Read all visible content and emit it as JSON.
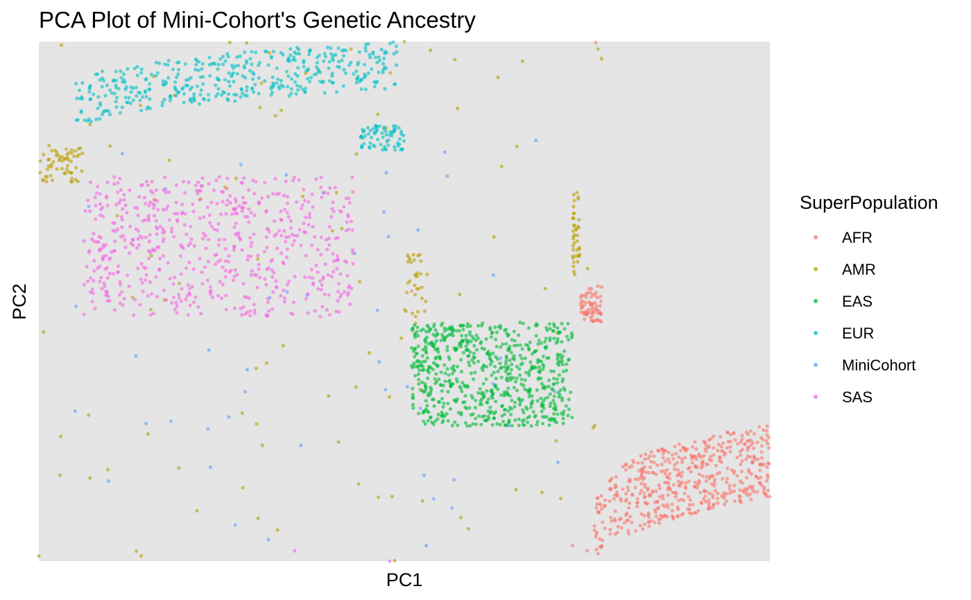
{
  "chart_data": {
    "type": "scatter",
    "title": "PCA Plot of Mini-Cohort's Genetic Ancestry",
    "xlabel": "PC1",
    "ylabel": "PC2",
    "xlim": [
      0,
      1
    ],
    "ylim": [
      0,
      1
    ],
    "axis_ticks": false,
    "grid": false,
    "panel_background": "#e5e5e5",
    "legend": {
      "title": "SuperPopulation",
      "position": "right",
      "entries": [
        "AFR",
        "AMR",
        "EAS",
        "EUR",
        "MiniCohort",
        "SAS"
      ]
    },
    "series": [
      {
        "name": "AFR",
        "color": "#F8766D",
        "clusters": [
          {
            "shape": "band",
            "n": 520,
            "x_range": [
              0.76,
              1.0
            ],
            "y_range": [
              0.0,
              0.26
            ],
            "note": "curved band rising to the right"
          },
          {
            "shape": "thin_line",
            "n": 70,
            "x_range": [
              0.74,
              0.77
            ],
            "y_range": [
              0.46,
              0.53
            ]
          }
        ],
        "points": [
          [
            0.762,
            0.998
          ],
          [
            0.51,
            0.52
          ],
          [
            0.73,
            0.03
          ],
          [
            0.75,
            0.02
          ]
        ]
      },
      {
        "name": "AMR",
        "color": "#B79F00",
        "clusters": [
          {
            "shape": "blob",
            "n": 60,
            "x_range": [
              0.0,
              0.06
            ],
            "y_range": [
              0.73,
              0.8
            ]
          },
          {
            "shape": "thin_line",
            "n": 40,
            "x_range": [
              0.73,
              0.74
            ],
            "y_range": [
              0.55,
              0.71
            ]
          },
          {
            "shape": "thin_line",
            "n": 30,
            "x_range": [
              0.5,
              0.53
            ],
            "y_range": [
              0.47,
              0.59
            ]
          },
          {
            "shape": "scatter",
            "n": 90,
            "x_range": [
              0.0,
              0.77
            ],
            "y_range": [
              0.0,
              1.0
            ]
          }
        ],
        "points": [
          [
            0.03,
            0.24
          ],
          [
            0.07,
            0.16
          ],
          [
            0.0,
            0.01
          ],
          [
            0.14,
            0.01
          ],
          [
            0.5,
            1.0
          ]
        ]
      },
      {
        "name": "EAS",
        "color": "#00BA38",
        "clusters": [
          {
            "shape": "rectangle",
            "n": 700,
            "x_range": [
              0.51,
              0.73
            ],
            "y_range": [
              0.26,
              0.46
            ]
          }
        ],
        "points": []
      },
      {
        "name": "EUR",
        "color": "#00BFC4",
        "clusters": [
          {
            "shape": "band",
            "n": 420,
            "x_range": [
              0.05,
              0.49
            ],
            "y_range": [
              0.83,
              1.0
            ],
            "note": "cloud rising to the right"
          },
          {
            "shape": "blob",
            "n": 70,
            "x_range": [
              0.44,
              0.5
            ],
            "y_range": [
              0.79,
              0.84
            ]
          }
        ],
        "points": []
      },
      {
        "name": "MiniCohort",
        "color": "#619CFF",
        "clusters": [
          {
            "shape": "scatter",
            "n": 45,
            "x_range": [
              0.04,
              0.73
            ],
            "y_range": [
              0.0,
              0.81
            ]
          }
        ],
        "points": [
          [
            0.54,
            0.12
          ],
          [
            0.53,
            0.03
          ],
          [
            0.71,
            0.19
          ]
        ]
      },
      {
        "name": "SAS",
        "color": "#F564E3",
        "clusters": [
          {
            "shape": "band",
            "n": 620,
            "x_range": [
              0.06,
              0.43
            ],
            "y_range": [
              0.47,
              0.74
            ],
            "note": "dense cloud"
          }
        ],
        "points": [
          [
            0.35,
            0.02
          ],
          [
            0.48,
            0.0
          ]
        ]
      }
    ]
  }
}
